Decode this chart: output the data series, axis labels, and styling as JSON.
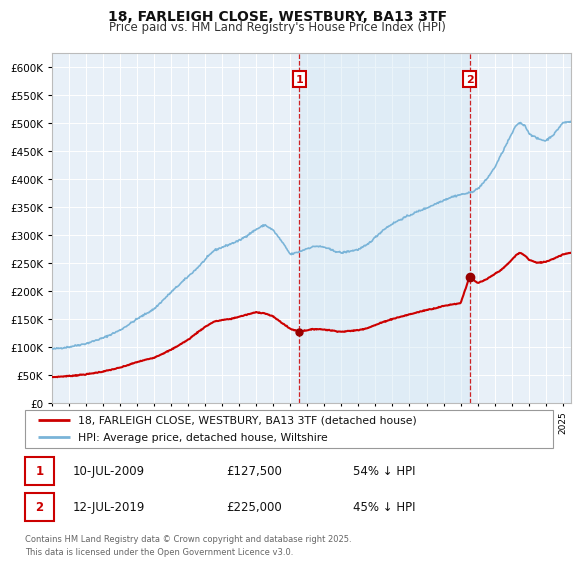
{
  "title": "18, FARLEIGH CLOSE, WESTBURY, BA13 3TF",
  "subtitle": "Price paid vs. HM Land Registry's House Price Index (HPI)",
  "ylim": [
    0,
    625000
  ],
  "yticks": [
    0,
    50000,
    100000,
    150000,
    200000,
    250000,
    300000,
    350000,
    400000,
    450000,
    500000,
    550000,
    600000
  ],
  "xlim_year": [
    1995.0,
    2025.5
  ],
  "sale1_date": "10-JUL-2009",
  "sale1_price": 127500,
  "sale1_pct": "54%",
  "sale2_date": "12-JUL-2019",
  "sale2_price": 225000,
  "sale2_pct": "45%",
  "line_color_hpi": "#7ab4d8",
  "line_color_price": "#cc0000",
  "vline_color": "#cc0000",
  "marker_color": "#990000",
  "shade_color": "#d6e8f5",
  "background_color": "#e8f0f8",
  "legend_label1": "18, FARLEIGH CLOSE, WESTBURY, BA13 3TF (detached house)",
  "legend_label2": "HPI: Average price, detached house, Wiltshire",
  "footer": "Contains HM Land Registry data © Crown copyright and database right 2025.\nThis data is licensed under the Open Government Licence v3.0.",
  "sale1_year": 2009.53,
  "sale2_year": 2019.53,
  "xtick_start": 1995,
  "xtick_end": 2025
}
